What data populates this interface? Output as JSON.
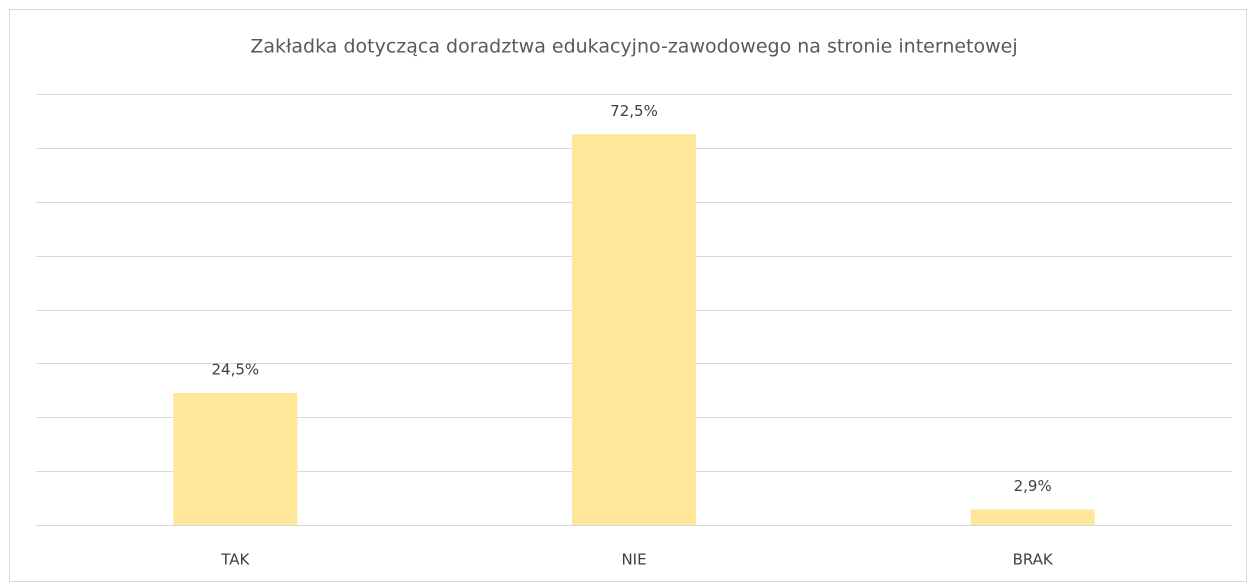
{
  "chart_data": {
    "type": "bar",
    "title": "Zakładka dotycząca doradztwa edukacyjno-zawodowego na stronie internetowej",
    "categories": [
      "TAK",
      "NIE",
      "BRAK"
    ],
    "values": [
      24.5,
      72.5,
      2.9
    ],
    "value_labels": [
      "24,5%",
      "72,5%",
      "2,9%"
    ],
    "color": "#ffe699",
    "ylim": [
      0,
      80
    ],
    "yticks": [
      0,
      10,
      20,
      30,
      40,
      50,
      60,
      70,
      80
    ],
    "grid": true
  }
}
